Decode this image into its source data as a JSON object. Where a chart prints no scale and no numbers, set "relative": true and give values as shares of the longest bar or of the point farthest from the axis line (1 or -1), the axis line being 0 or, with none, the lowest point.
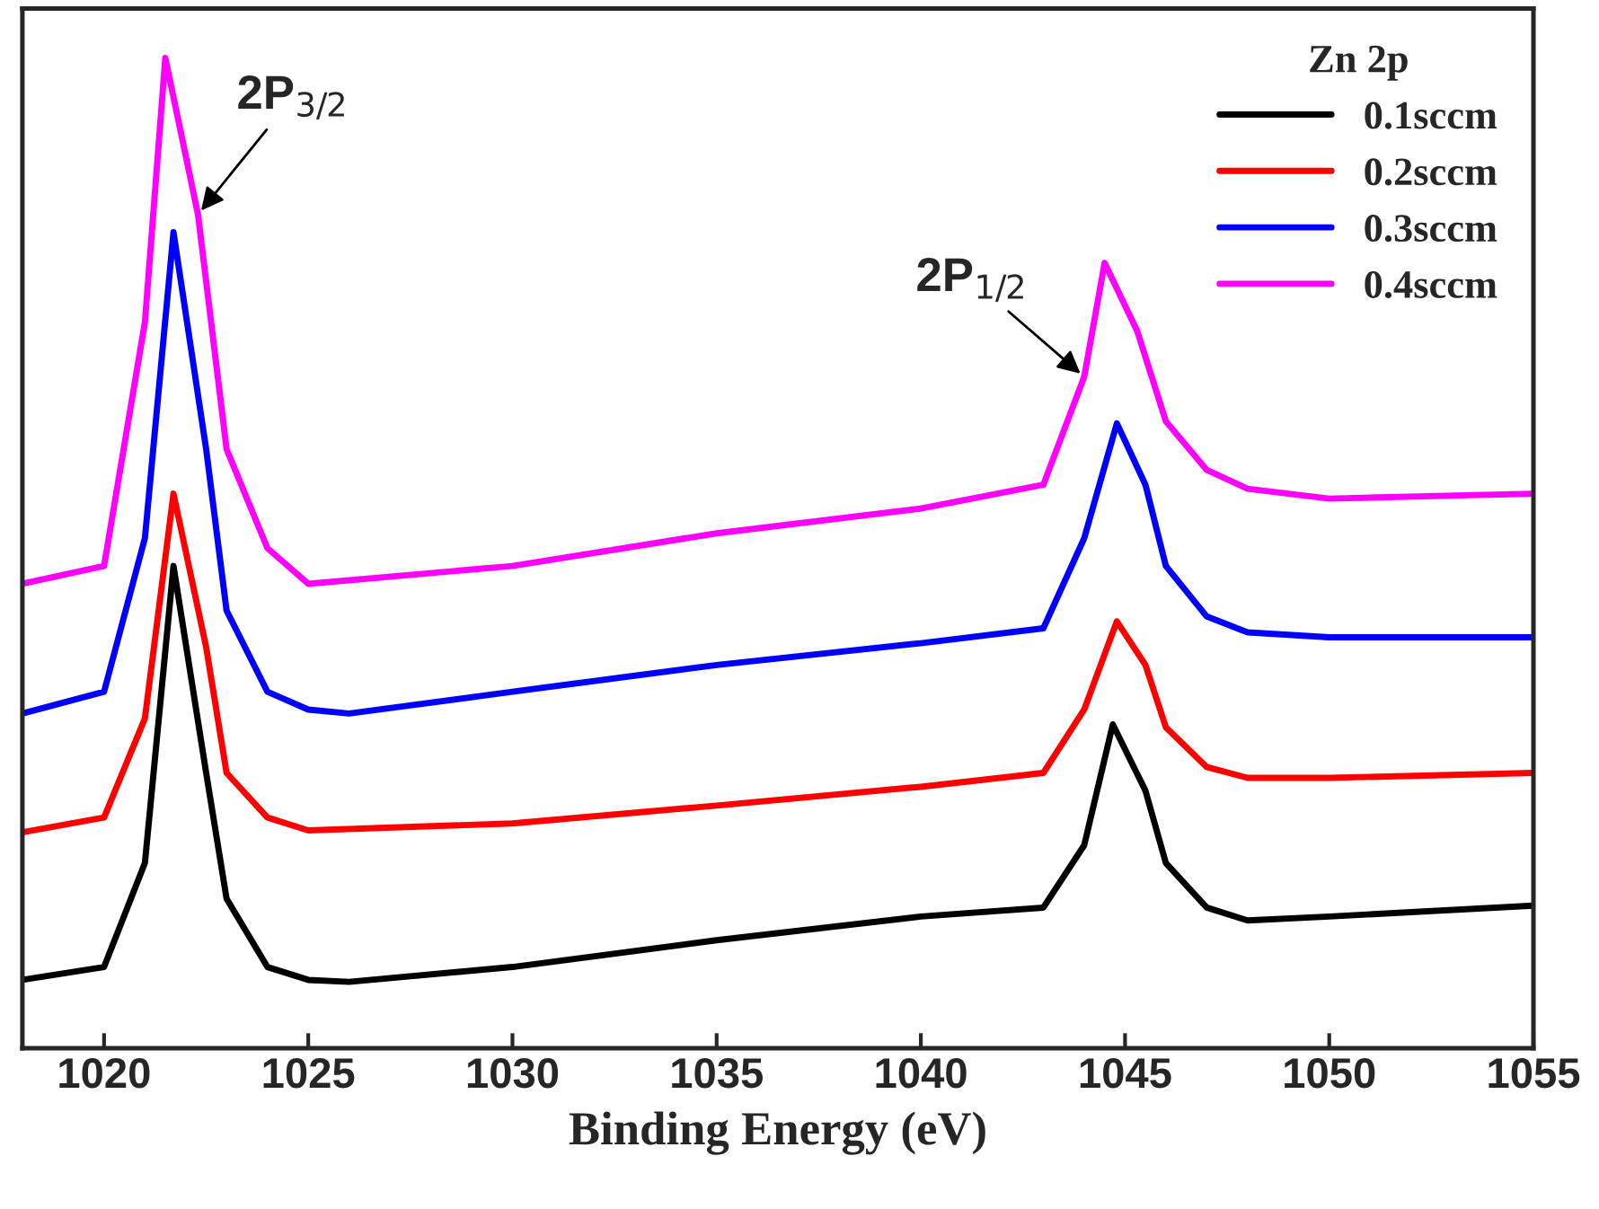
{
  "chart_data": {
    "type": "line",
    "relative": true,
    "xlabel": "Binding Energy (eV)",
    "legend_title": "Zn 2p",
    "legend": "top right",
    "tick_labels": "x",
    "grid": false,
    "line_style": "solid",
    "xlim": [
      1018,
      1055
    ],
    "xticks": [
      1020,
      1025,
      1030,
      1035,
      1040,
      1045,
      1050,
      1055
    ],
    "annotations": [
      {
        "text": "2P$_{3/2}$",
        "x": 1022.3,
        "y": 0.842
      },
      {
        "text": "2P$_{1/2}$",
        "x": 1044,
        "y": 0.678
      }
    ],
    "series": [
      {
        "name": "0.1sccm",
        "color": "#000000",
        "x": [
          1018,
          1020,
          1021,
          1021.7,
          1022.5,
          1023,
          1024,
          1025,
          1026,
          1030,
          1035,
          1040,
          1043,
          1044,
          1044.7,
          1045.5,
          1046,
          1047,
          1048,
          1050,
          1055
        ],
        "values": [
          0.069,
          0.082,
          0.187,
          0.487,
          0.278,
          0.151,
          0.082,
          0.069,
          0.067,
          0.082,
          0.109,
          0.133,
          0.142,
          0.205,
          0.327,
          0.26,
          0.187,
          0.142,
          0.129,
          0.133,
          0.144
        ]
      },
      {
        "name": "0.2sccm",
        "color": "#ff0000",
        "x": [
          1018,
          1020,
          1021,
          1021.7,
          1022.5,
          1023,
          1024,
          1025,
          1030,
          1035,
          1040,
          1043,
          1044,
          1044.8,
          1045.5,
          1046,
          1047,
          1048,
          1050,
          1055
        ],
        "values": [
          0.218,
          0.233,
          0.333,
          0.56,
          0.405,
          0.278,
          0.233,
          0.22,
          0.227,
          0.245,
          0.264,
          0.278,
          0.342,
          0.431,
          0.387,
          0.324,
          0.284,
          0.273,
          0.273,
          0.278
        ]
      },
      {
        "name": "0.3sccm",
        "color": "#0000ff",
        "x": [
          1018,
          1020,
          1021,
          1021.7,
          1022.5,
          1023,
          1024,
          1025,
          1026,
          1030,
          1035,
          1040,
          1043,
          1044,
          1044.8,
          1045.5,
          1046,
          1047,
          1048,
          1050,
          1055
        ],
        "values": [
          0.338,
          0.36,
          0.515,
          0.824,
          0.605,
          0.442,
          0.36,
          0.342,
          0.338,
          0.36,
          0.387,
          0.409,
          0.424,
          0.515,
          0.631,
          0.569,
          0.487,
          0.436,
          0.42,
          0.415,
          0.415
        ]
      },
      {
        "name": "0.4sccm",
        "color": "#ff00ff",
        "x": [
          1018,
          1020,
          1021,
          1021.5,
          1022.3,
          1023,
          1024,
          1025,
          1030,
          1035,
          1040,
          1043,
          1044,
          1044.5,
          1045.3,
          1046,
          1047,
          1048,
          1050,
          1055
        ],
        "values": [
          0.469,
          0.487,
          0.733,
          1,
          0.842,
          0.605,
          0.505,
          0.469,
          0.487,
          0.52,
          0.545,
          0.569,
          0.678,
          0.793,
          0.724,
          0.633,
          0.584,
          0.565,
          0.555,
          0.56
        ]
      }
    ]
  }
}
